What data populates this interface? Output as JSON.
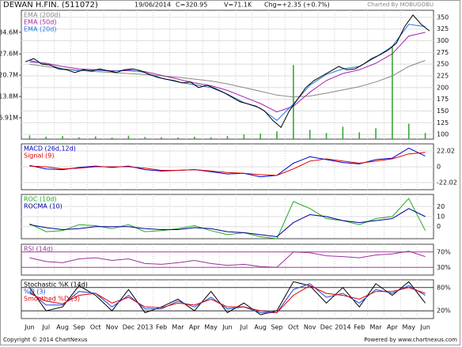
{
  "chart_data": [
    {
      "type": "line",
      "title": "DEWAN H.FIN. (511072)",
      "header_fields": [
        "19/06/2014",
        "C=320.95",
        "V=71.1K",
        "Chg=+2.35 (+0.7%)"
      ],
      "credit": "Charted By MOBUGOBU",
      "ylim": [
        90,
        365
      ],
      "yticks": [
        100,
        125,
        150,
        175,
        200,
        225,
        250,
        275,
        300,
        325,
        350
      ],
      "grid_color": "#dddddd",
      "y2lim": [
        0,
        41720000
      ],
      "y2ticks": [
        {
          "value": 6910000,
          "label": "6.91M"
        },
        {
          "value": 13800000,
          "label": "13.8M"
        },
        {
          "value": 20700000,
          "label": "20.7M"
        },
        {
          "value": 27600000,
          "label": "27.6M"
        },
        {
          "value": 34600000,
          "label": "34.6M"
        }
      ],
      "series": [
        {
          "color": "#33aa33",
          "axis": "y2",
          "style": "bar",
          "values": [
            1200000,
            800000,
            1000000,
            600000,
            900000,
            500000,
            1100000,
            700000,
            600000,
            500000,
            800000,
            600000,
            1000000,
            1500000,
            1800000,
            2500000,
            24000000,
            3000000,
            2000000,
            4000000,
            2200000,
            3500000,
            30000000,
            5000000,
            2000000
          ]
        },
        {
          "name": "EMA (200d)",
          "color": "#888888",
          "values": [
            250,
            245,
            240,
            237,
            234,
            232,
            230,
            228,
            225,
            222,
            218,
            214,
            208,
            200,
            192,
            184,
            180,
            182,
            188,
            195,
            202,
            212,
            225,
            245,
            258
          ]
        },
        {
          "name": "EMA (50d)",
          "color": "#aa22aa",
          "values": [
            255,
            252,
            245,
            240,
            238,
            236,
            236,
            234,
            226,
            218,
            210,
            204,
            194,
            180,
            166,
            148,
            160,
            190,
            215,
            230,
            238,
            252,
            272,
            310,
            318
          ]
        },
        {
          "name": "EMA (20d)",
          "color": "#2277dd",
          "values": [
            258,
            250,
            240,
            236,
            237,
            235,
            238,
            232,
            220,
            212,
            206,
            200,
            186,
            168,
            156,
            130,
            165,
            205,
            228,
            240,
            245,
            265,
            288,
            335,
            330
          ]
        },
        {
          "color": "#000000",
          "values": [
            255,
            262,
            250,
            248,
            240,
            238,
            232,
            238,
            235,
            240,
            236,
            232,
            238,
            240,
            236,
            228,
            222,
            218,
            215,
            210,
            212,
            200,
            205,
            198,
            190,
            180,
            170,
            165,
            160,
            150,
            130,
            115,
            150,
            175,
            200,
            215,
            225,
            235,
            245,
            238,
            240,
            250,
            262,
            270,
            280,
            295,
            330,
            355,
            335,
            321
          ]
        }
      ]
    },
    {
      "type": "line",
      "ylim": [
        -32,
        32
      ],
      "yticks": [
        22.02,
        0,
        -22.02
      ],
      "grid_color": "#dddddd",
      "series": [
        {
          "name": "MACD (26d,12d)",
          "color": "#0000cc",
          "values": [
            2,
            -3,
            -4,
            -1,
            1,
            -1,
            1,
            -4,
            -6,
            -5,
            -4,
            -7,
            -10,
            -9,
            -14,
            -12,
            5,
            14,
            10,
            6,
            4,
            10,
            12,
            26,
            15
          ]
        },
        {
          "name": "Signal (9)",
          "color": "#dd0000",
          "values": [
            1,
            0,
            -3,
            -2,
            0,
            0,
            0,
            -2,
            -5,
            -5,
            -4,
            -6,
            -8,
            -9,
            -11,
            -12,
            -3,
            8,
            11,
            8,
            5,
            8,
            11,
            18,
            20
          ]
        }
      ]
    },
    {
      "type": "line",
      "ylim": [
        -12,
        32
      ],
      "yticks": [
        0,
        10,
        20
      ],
      "grid_color": "#dddddd",
      "series": [
        {
          "name": "ROC (10d)",
          "color": "#22aa22",
          "values": [
            3,
            -5,
            -4,
            2,
            1,
            -2,
            2,
            -5,
            -4,
            -2,
            1,
            -4,
            -8,
            -6,
            -10,
            -12,
            25,
            18,
            8,
            6,
            2,
            8,
            10,
            28,
            -4
          ]
        },
        {
          "name": "ROCMA (10)",
          "color": "#000099",
          "values": [
            2,
            -1,
            -3,
            -2,
            0,
            0,
            0,
            -2,
            -3,
            -3,
            -1,
            -2,
            -5,
            -6,
            -8,
            -10,
            4,
            12,
            10,
            6,
            4,
            6,
            8,
            18,
            10
          ]
        }
      ]
    },
    {
      "type": "line",
      "ylim": [
        10,
        90
      ],
      "yticks": [
        {
          "value": 70,
          "label": "70%"
        },
        {
          "value": 30,
          "label": "30%"
        }
      ],
      "grid_color": "#aa3399",
      "series": [
        {
          "name": "RSI (14d)",
          "color": "#993399",
          "values": [
            55,
            45,
            42,
            52,
            55,
            48,
            52,
            40,
            38,
            42,
            48,
            40,
            35,
            38,
            32,
            30,
            70,
            68,
            60,
            58,
            55,
            62,
            65,
            72,
            58
          ]
        }
      ]
    },
    {
      "type": "line",
      "ylim": [
        0,
        100
      ],
      "yticks": [
        {
          "value": 80,
          "label": "80%"
        },
        {
          "value": 20,
          "label": "20%"
        }
      ],
      "grid_color": "#333333",
      "series": [
        {
          "name": "Stochastic %K (14d)",
          "color": "#000000",
          "values": [
            80,
            20,
            30,
            85,
            60,
            20,
            75,
            15,
            30,
            50,
            20,
            70,
            15,
            40,
            10,
            20,
            95,
            85,
            40,
            80,
            30,
            90,
            60,
            95,
            40
          ]
        },
        {
          "name": "%D (3)",
          "color": "#2244dd",
          "values": [
            70,
            35,
            35,
            70,
            65,
            30,
            60,
            25,
            25,
            45,
            30,
            55,
            25,
            30,
            15,
            15,
            75,
            90,
            55,
            65,
            40,
            75,
            65,
            85,
            60
          ]
        },
        {
          "name": "Smoothed %D (3)",
          "color": "#dd0000",
          "values": [
            65,
            45,
            38,
            60,
            65,
            40,
            55,
            30,
            28,
            40,
            35,
            50,
            30,
            30,
            20,
            15,
            60,
            85,
            65,
            60,
            50,
            70,
            70,
            80,
            65
          ]
        }
      ]
    }
  ],
  "x_axis": {
    "categories": [
      "Jun",
      "Jul",
      "Aug",
      "Sep",
      "Oct",
      "Nov",
      "Dec",
      "2013",
      "Feb",
      "Mar",
      "Apr",
      "May",
      "Jun",
      "Jul",
      "Aug",
      "Sep",
      "Oct",
      "Nov",
      "Dec",
      "2014",
      "Feb",
      "Mar",
      "Apr",
      "May",
      "Jun"
    ]
  },
  "footer": {
    "copyright": "Copyright © 2014 ChartNexus",
    "powered_by": "Powered by www.chartnexus.com"
  }
}
